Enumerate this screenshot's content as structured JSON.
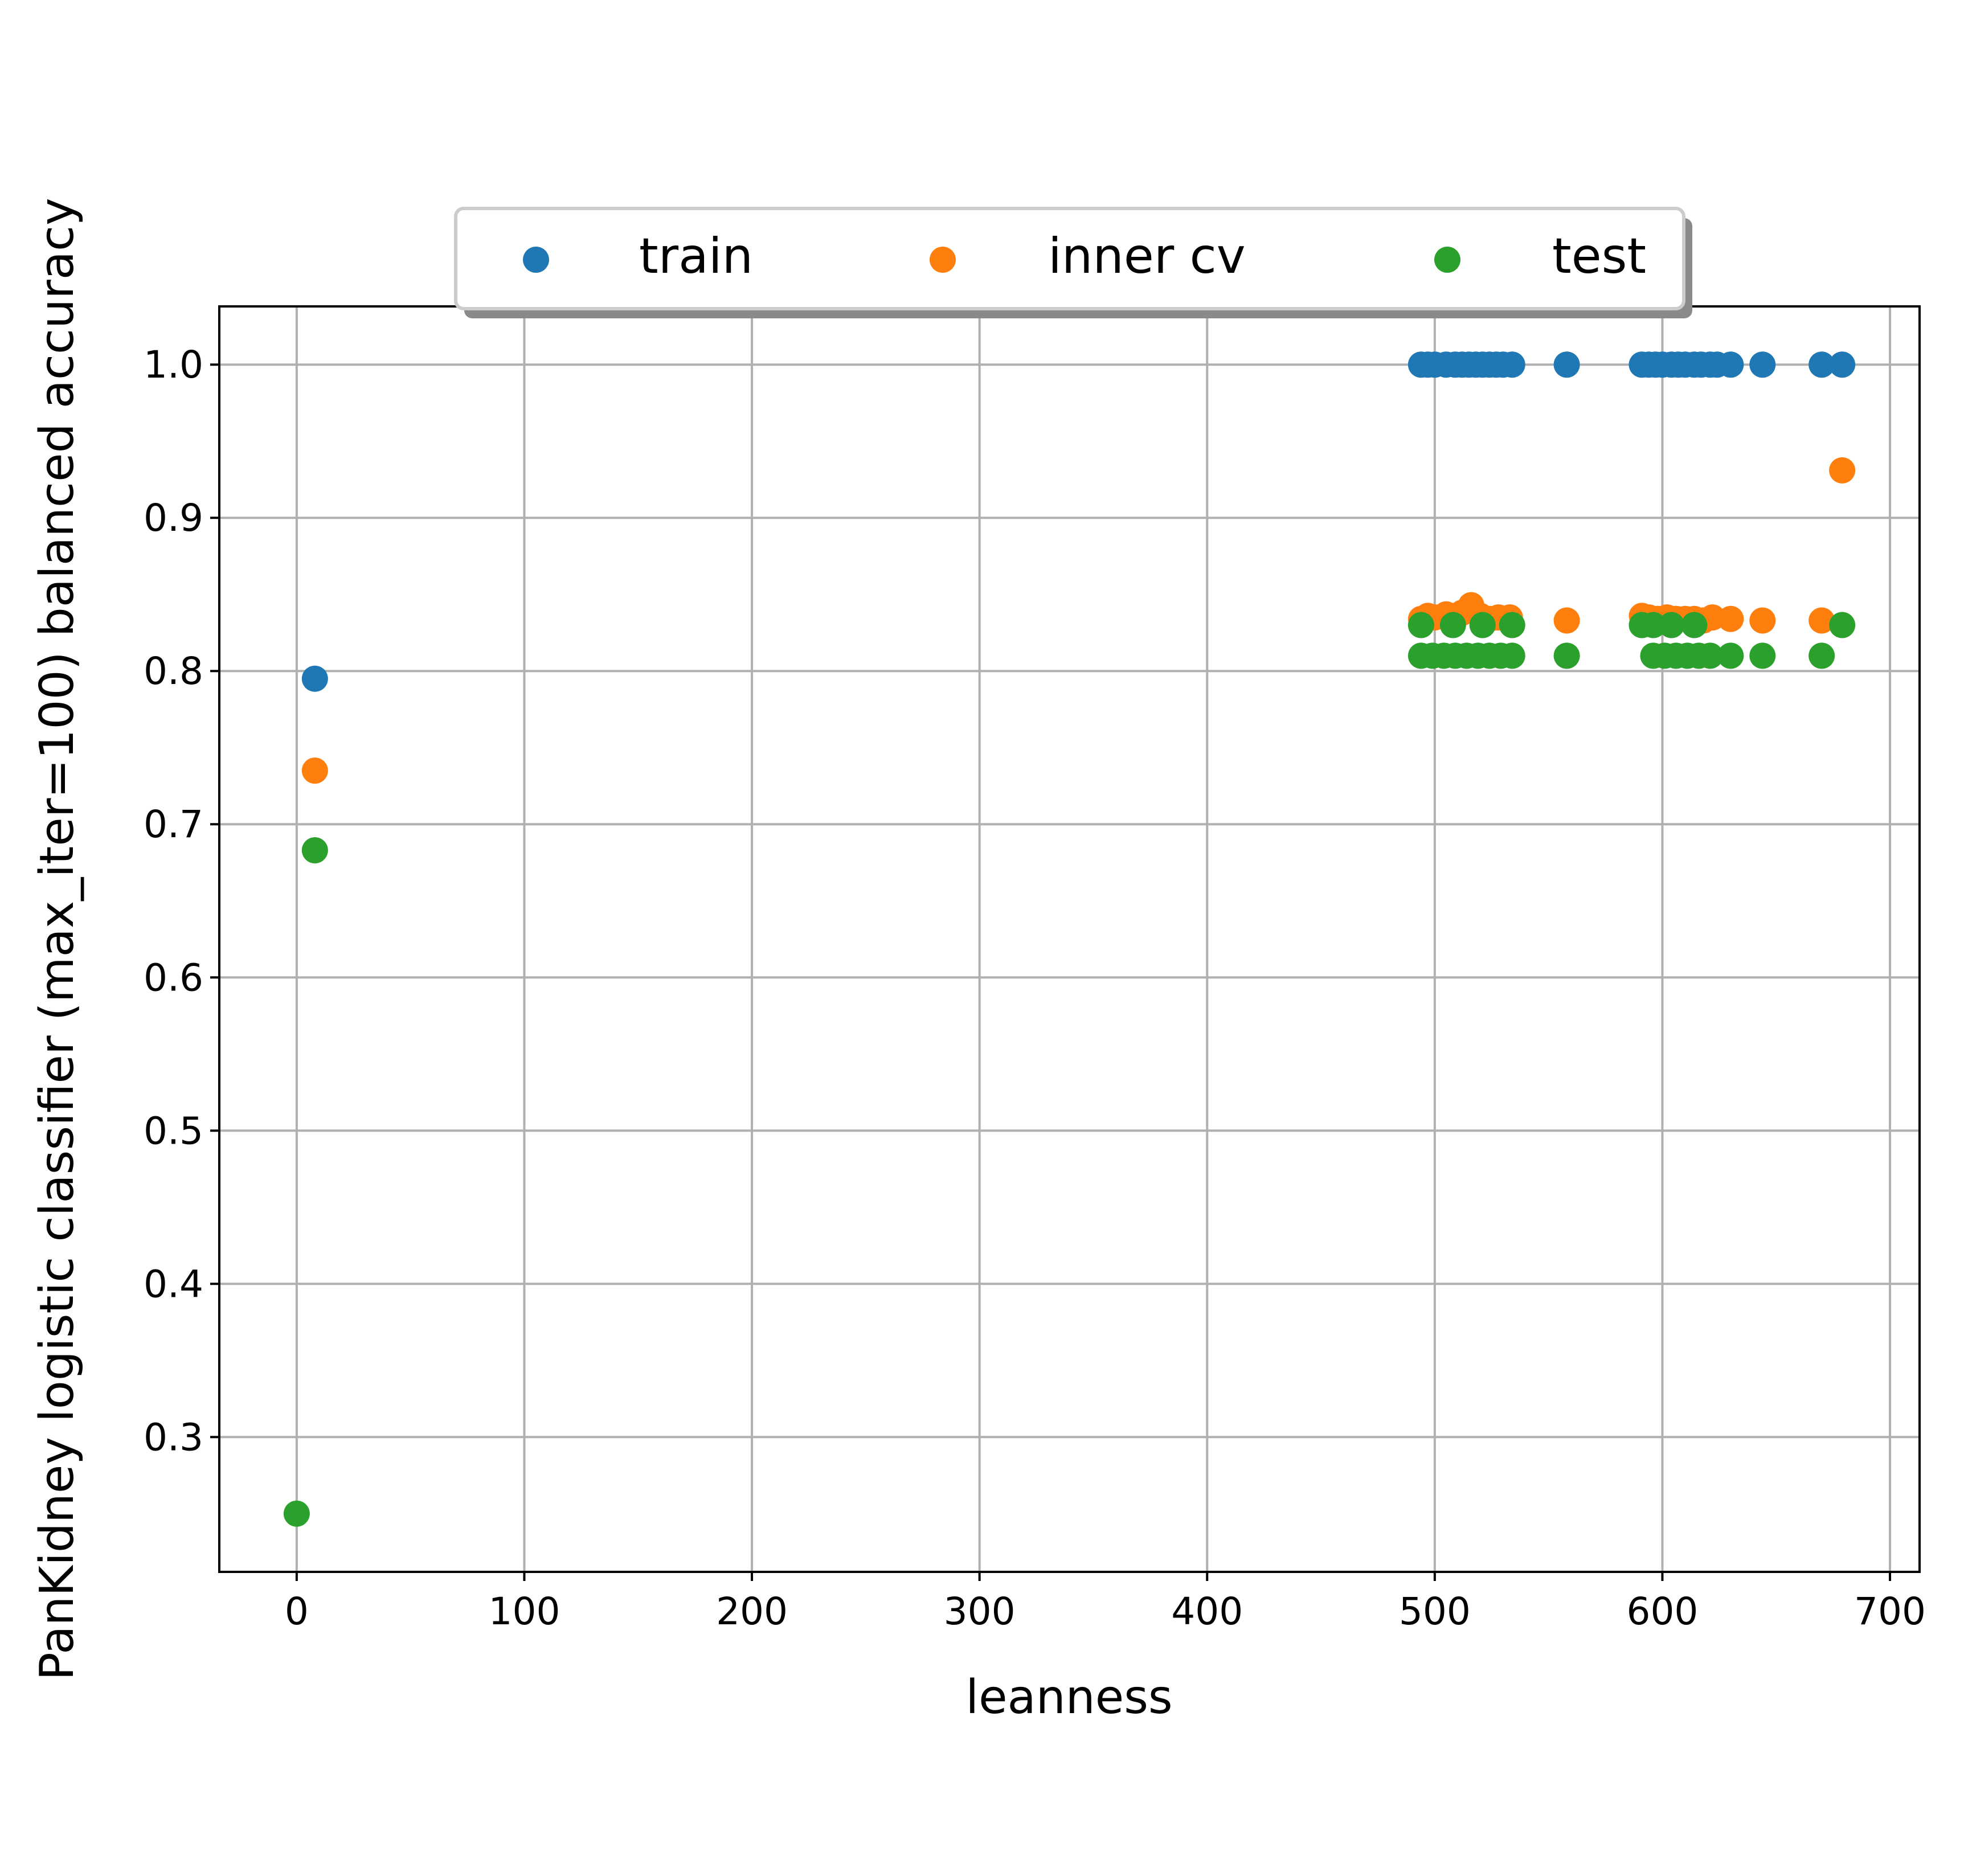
{
  "chart_data": {
    "type": "scatter",
    "title": "",
    "xlabel": "leanness",
    "ylabel": "PanKidney logistic classifier (max_iter=100) balanced accuracy",
    "xlim": [
      -34,
      713
    ],
    "ylim": [
      0.212,
      1.038
    ],
    "x_ticks": [
      0,
      100,
      200,
      300,
      400,
      500,
      600,
      700
    ],
    "x_tick_labels": [
      "0",
      "100",
      "200",
      "300",
      "400",
      "500",
      "600",
      "700"
    ],
    "y_ticks": [
      0.3,
      0.4,
      0.5,
      0.6,
      0.7,
      0.8,
      0.9,
      1.0
    ],
    "y_tick_labels": [
      "0.3",
      "0.4",
      "0.5",
      "0.6",
      "0.7",
      "0.8",
      "0.9",
      "1.0"
    ],
    "grid": true,
    "legend": {
      "placement": "top-center",
      "columns": 3
    },
    "series": [
      {
        "name": "train",
        "color": "#1f77b4",
        "points": [
          [
            8,
            0.795
          ],
          [
            494,
            1.0
          ],
          [
            497,
            1.0
          ],
          [
            500,
            1.0
          ],
          [
            505,
            1.0
          ],
          [
            509,
            1.0
          ],
          [
            512,
            1.0
          ],
          [
            515,
            1.0
          ],
          [
            518,
            1.0
          ],
          [
            521,
            1.0
          ],
          [
            524,
            1.0
          ],
          [
            527,
            1.0
          ],
          [
            530,
            1.0
          ],
          [
            534,
            1.0
          ],
          [
            558,
            1.0
          ],
          [
            591,
            1.0
          ],
          [
            594,
            1.0
          ],
          [
            597,
            1.0
          ],
          [
            600,
            1.0
          ],
          [
            604,
            1.0
          ],
          [
            607,
            1.0
          ],
          [
            610,
            1.0
          ],
          [
            614,
            1.0
          ],
          [
            617,
            1.0
          ],
          [
            621,
            1.0
          ],
          [
            624,
            1.0
          ],
          [
            630,
            1.0
          ],
          [
            644,
            1.0
          ],
          [
            670,
            1.0
          ],
          [
            679,
            1.0
          ]
        ]
      },
      {
        "name": "inner cv",
        "color": "#ff7f0e",
        "points": [
          [
            8,
            0.735
          ],
          [
            494,
            0.834
          ],
          [
            497,
            0.836
          ],
          [
            500,
            0.835
          ],
          [
            505,
            0.837
          ],
          [
            509,
            0.836
          ],
          [
            512,
            0.838
          ],
          [
            516,
            0.843
          ],
          [
            520,
            0.836
          ],
          [
            524,
            0.834
          ],
          [
            528,
            0.835
          ],
          [
            533,
            0.835
          ],
          [
            558,
            0.833
          ],
          [
            591,
            0.836
          ],
          [
            594,
            0.835
          ],
          [
            598,
            0.834
          ],
          [
            602,
            0.835
          ],
          [
            606,
            0.834
          ],
          [
            610,
            0.834
          ],
          [
            614,
            0.834
          ],
          [
            618,
            0.833
          ],
          [
            622,
            0.835
          ],
          [
            630,
            0.834
          ],
          [
            644,
            0.833
          ],
          [
            670,
            0.833
          ],
          [
            679,
            0.931
          ]
        ]
      },
      {
        "name": "test",
        "color": "#2ca02c",
        "points": [
          [
            0,
            0.25
          ],
          [
            8,
            0.683
          ],
          [
            494,
            0.83
          ],
          [
            508,
            0.83
          ],
          [
            521,
            0.83
          ],
          [
            534,
            0.83
          ],
          [
            494,
            0.81
          ],
          [
            499,
            0.81
          ],
          [
            504,
            0.81
          ],
          [
            509,
            0.81
          ],
          [
            514,
            0.81
          ],
          [
            519,
            0.81
          ],
          [
            524,
            0.81
          ],
          [
            529,
            0.81
          ],
          [
            534,
            0.81
          ],
          [
            558,
            0.81
          ],
          [
            591,
            0.83
          ],
          [
            596,
            0.83
          ],
          [
            604,
            0.83
          ],
          [
            614,
            0.83
          ],
          [
            596,
            0.81
          ],
          [
            601,
            0.81
          ],
          [
            606,
            0.81
          ],
          [
            611,
            0.81
          ],
          [
            616,
            0.81
          ],
          [
            621,
            0.81
          ],
          [
            630,
            0.81
          ],
          [
            644,
            0.81
          ],
          [
            670,
            0.81
          ],
          [
            679,
            0.83
          ]
        ]
      }
    ]
  }
}
